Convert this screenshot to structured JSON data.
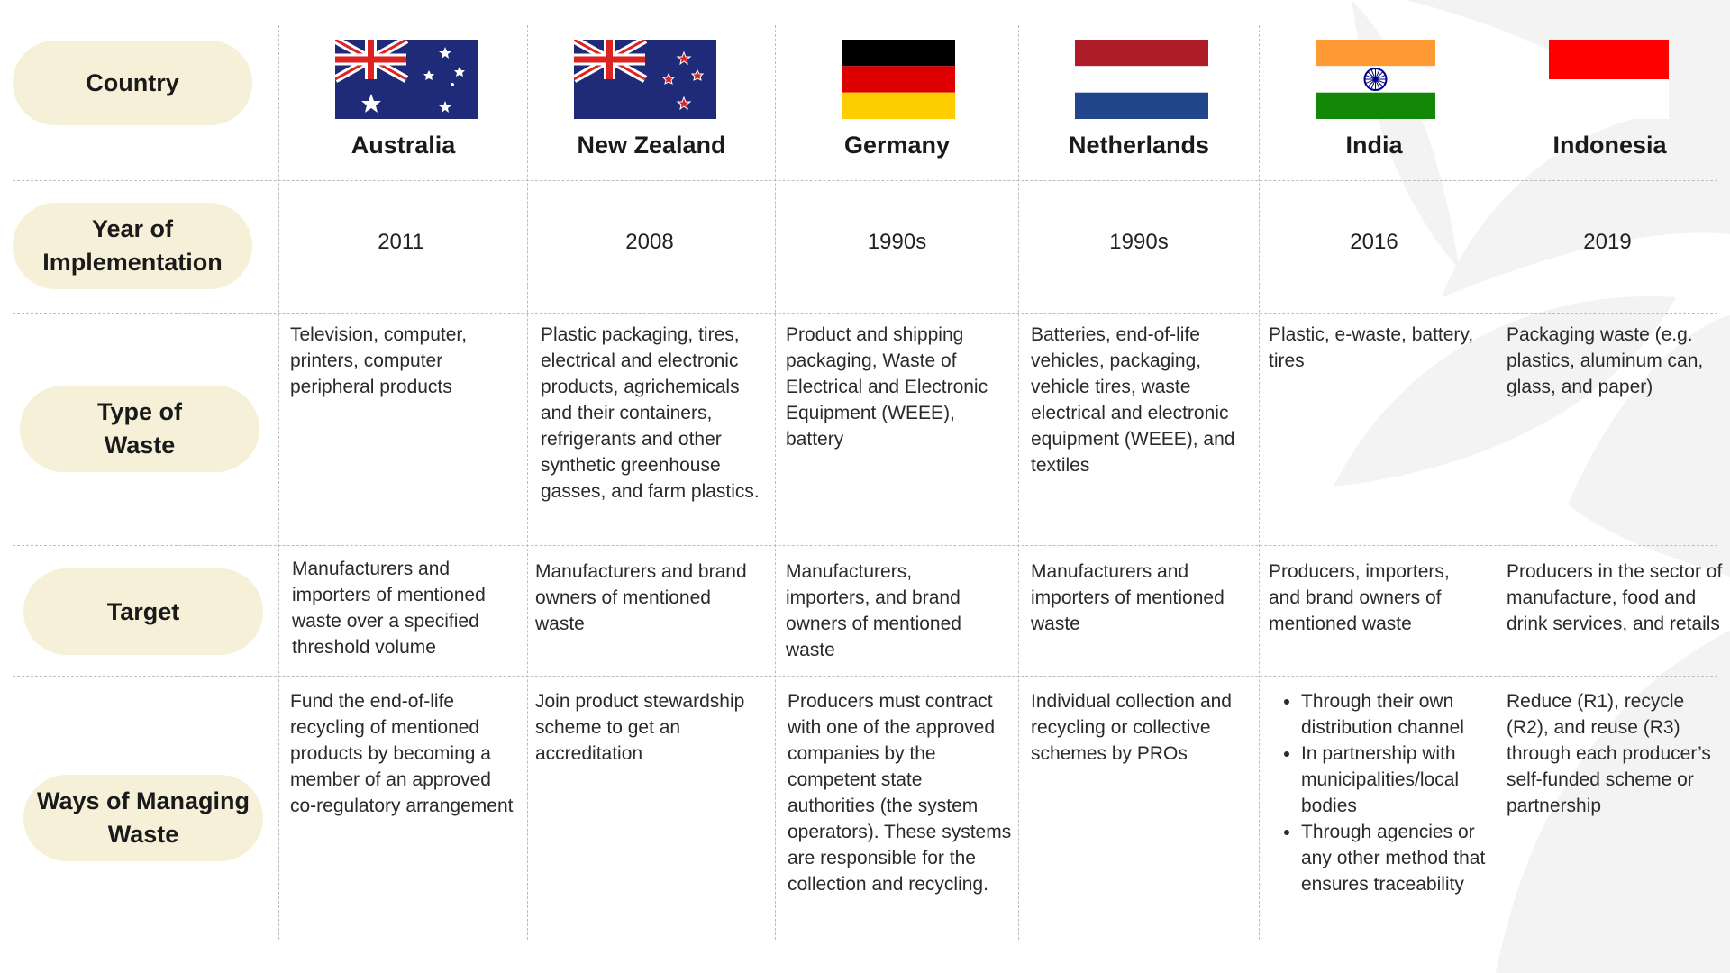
{
  "row_labels": {
    "country": "Country",
    "year_line1": "Year of",
    "year_line2": "Implementation",
    "type_line1": "Type of",
    "type_line2": "Waste",
    "target": "Target",
    "ways_line1": "Ways of Managing",
    "ways_line2": "Waste"
  },
  "countries": [
    {
      "name": "Australia",
      "flag": "australia-flag-icon",
      "year": "2011",
      "waste_type": "Television, computer, printers, computer peripheral products",
      "target": "Manufacturers and importers of mentioned waste over a specified threshold volume",
      "ways": "Fund the end-of-life recycling of mentioned products by becoming a member of an approved co-regulatory arrangement"
    },
    {
      "name": "New Zealand",
      "flag": "new-zealand-flag-icon",
      "year": "2008",
      "waste_type": "Plastic packaging, tires, electrical and electronic products, agrichemicals and their containers, refrigerants and other synthetic greenhouse gasses, and farm plastics.",
      "target": "Manufacturers and brand owners of mentioned waste",
      "ways": "Join product stewardship scheme to get an accreditation"
    },
    {
      "name": "Germany",
      "flag": "germany-flag-icon",
      "year": "1990s",
      "waste_type": "Product and shipping packaging, Waste of Electrical and Electronic Equipment (WEEE), battery",
      "target": "Manufacturers, importers, and brand owners of mentioned waste",
      "ways": "Producers must contract with one of the approved companies by the competent state authorities (the system operators).  These systems are responsible for the collection and recycling."
    },
    {
      "name": "Netherlands",
      "flag": "netherlands-flag-icon",
      "year": "1990s",
      "waste_type": "Batteries, end-of-life vehicles, packaging, vehicle tires, waste electrical and electronic equipment (WEEE), and textiles",
      "target": "Manufacturers and importers of mentioned waste",
      "ways": "Individual collection and recycling or collective schemes by PROs"
    },
    {
      "name": "India",
      "flag": "india-flag-icon",
      "year": "2016",
      "waste_type": "Plastic, e-waste, battery, tires",
      "target": "Producers, importers, and brand owners of mentioned waste",
      "ways_list": [
        "Through their own distribution channel",
        "In partnership with municipalities/local bodies",
        "Through agencies or any other method that ensures traceability"
      ]
    },
    {
      "name": "Indonesia",
      "flag": "indonesia-flag-icon",
      "year": "2019",
      "waste_type": "Packaging waste (e.g. plastics, aluminum can, glass, and paper)",
      "target": "Producers in the sector of manufacture, food and drink services, and retails",
      "ways": "Reduce (R1), recycle (R2), and reuse (R3) through each producer’s self-funded scheme or partnership"
    }
  ],
  "colors": {
    "pill_background": "#f6f0d9",
    "grid_line": "#bdbdbd",
    "watermark": "#f2f2f2"
  }
}
